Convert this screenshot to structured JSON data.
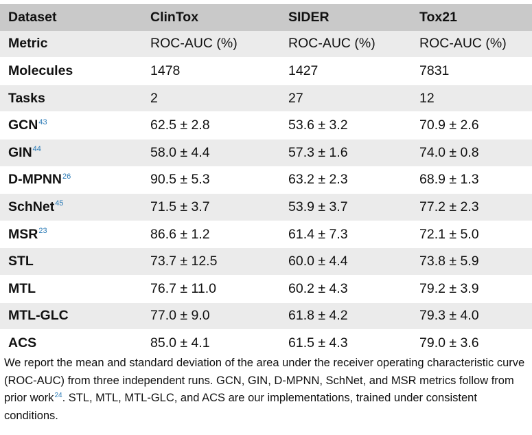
{
  "table": {
    "columns": [
      "Dataset",
      "ClinTox",
      "SIDER",
      "Tox21"
    ],
    "rows": [
      {
        "label": "Metric",
        "ref": "",
        "values": [
          "ROC-AUC (%)",
          "ROC-AUC (%)",
          "ROC-AUC (%)"
        ]
      },
      {
        "label": "Molecules",
        "ref": "",
        "values": [
          "1478",
          "1427",
          "7831"
        ]
      },
      {
        "label": "Tasks",
        "ref": "",
        "values": [
          "2",
          "27",
          "12"
        ]
      },
      {
        "label": "GCN",
        "ref": "43",
        "values": [
          "62.5 ± 2.8",
          "53.6 ± 3.2",
          "70.9 ± 2.6"
        ]
      },
      {
        "label": "GIN",
        "ref": "44",
        "values": [
          "58.0 ± 4.4",
          "57.3 ± 1.6",
          "74.0 ± 0.8"
        ]
      },
      {
        "label": "D-MPNN",
        "ref": "26",
        "values": [
          "90.5 ± 5.3",
          "63.2 ± 2.3",
          "68.9 ± 1.3"
        ]
      },
      {
        "label": "SchNet",
        "ref": "45",
        "values": [
          "71.5 ± 3.7",
          "53.9 ± 3.7",
          "77.2 ± 2.3"
        ]
      },
      {
        "label": "MSR",
        "ref": "23",
        "values": [
          "86.6 ± 1.2",
          "61.4 ± 7.3",
          "72.1 ± 5.0"
        ]
      },
      {
        "label": "STL",
        "ref": "",
        "values": [
          "73.7 ± 12.5",
          "60.0 ± 4.4",
          "73.8 ± 5.9"
        ]
      },
      {
        "label": "MTL",
        "ref": "",
        "values": [
          "76.7 ± 11.0",
          "60.2 ± 4.3",
          "79.2 ± 3.9"
        ]
      },
      {
        "label": "MTL-GLC",
        "ref": "",
        "values": [
          "77.0 ± 9.0",
          "61.8 ± 4.2",
          "79.3 ± 4.0"
        ]
      },
      {
        "label": "ACS",
        "ref": "",
        "values": [
          "85.0 ± 4.1",
          "61.5 ± 4.3",
          "79.0 ± 3.6"
        ]
      }
    ]
  },
  "footnote": {
    "text_before": "We report the mean and standard deviation of the area under the receiver operating characteristic curve (ROC-AUC) from three independent runs. GCN, GIN, D-MPNN, SchNet, and MSR metrics follow from prior work",
    "ref": "24",
    "text_after": ". STL, MTL, MTL-GLC, and ACS are our implementations, trained under consistent conditions."
  },
  "colors": {
    "header_bg": "#c9c9c9",
    "stripe_bg": "#ebebeb",
    "reference_link": "#2a7ab6"
  }
}
